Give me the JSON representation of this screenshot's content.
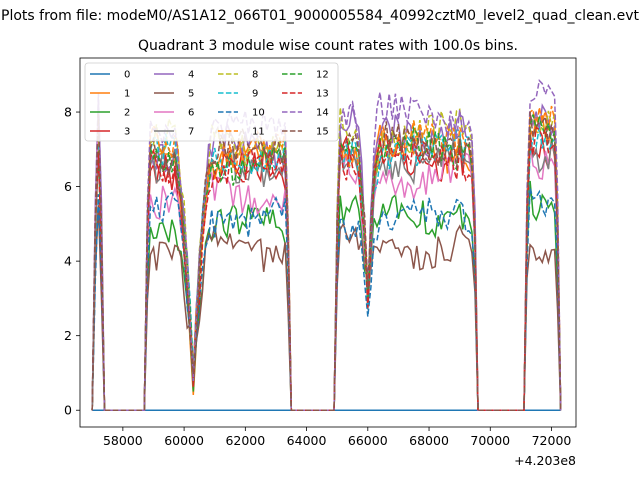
{
  "chart_data": {
    "type": "line",
    "suptitle": "Plots from file: modeM0/AS1A12_066T01_9000005584_40992cztM0_level2_quad_clean.evt",
    "title": "Quadrant 3 module wise count rates with 100.0s bins.",
    "xlabel": "",
    "ylabel": "",
    "x_offset_label": "+4.203e8",
    "xlim": [
      56600,
      72800
    ],
    "ylim": [
      -0.45,
      9.45
    ],
    "xticks": [
      58000,
      60000,
      62000,
      64000,
      66000,
      68000,
      70000,
      72000
    ],
    "xtick_labels": [
      "58000",
      "60000",
      "62000",
      "64000",
      "66000",
      "68000",
      "70000",
      "72000"
    ],
    "yticks": [
      0,
      2,
      4,
      6,
      8
    ],
    "ytick_labels": [
      "0",
      "2",
      "4",
      "6",
      "8"
    ],
    "legend_position": "upper-left",
    "legend_columns": 4,
    "segments": [
      [
        57000,
        57400
      ],
      [
        58700,
        63500
      ],
      [
        64900,
        69600
      ],
      [
        71100,
        72300
      ]
    ],
    "x_start": 57000,
    "x_end": 72300,
    "dip_x": 60300,
    "series": [
      {
        "name": "0",
        "color": "#1f77b4",
        "dash": "solid",
        "rates": [
          0,
          0,
          0,
          0
        ],
        "spike": 0
      },
      {
        "name": "1",
        "color": "#ff7f0e",
        "dash": "solid",
        "rates": [
          7.3,
          6.7,
          7.0,
          7.5
        ],
        "spike": 8.0
      },
      {
        "name": "2",
        "color": "#2ca02c",
        "dash": "solid",
        "rates": [
          5.3,
          4.9,
          5.3,
          5.4
        ],
        "spike": 6.2
      },
      {
        "name": "3",
        "color": "#d62728",
        "dash": "solid",
        "rates": [
          6.9,
          6.5,
          6.8,
          7.0
        ],
        "spike": 7.8
      },
      {
        "name": "4",
        "color": "#9467bd",
        "dash": "solid",
        "rates": [
          7.9,
          7.0,
          7.5,
          7.9
        ],
        "spike": 8.4
      },
      {
        "name": "5",
        "color": "#8c564b",
        "dash": "solid",
        "rates": [
          4.9,
          4.3,
          4.4,
          4.6
        ],
        "spike": 5.6
      },
      {
        "name": "6",
        "color": "#e377c2",
        "dash": "solid",
        "rates": [
          7.1,
          5.7,
          6.3,
          6.8
        ],
        "spike": 7.6
      },
      {
        "name": "7",
        "color": "#7f7f7f",
        "dash": "solid",
        "rates": [
          7.0,
          6.6,
          6.7,
          7.0
        ],
        "spike": 7.7
      },
      {
        "name": "8",
        "color": "#bcbd22",
        "dash": "dashed",
        "rates": [
          7.6,
          7.2,
          7.4,
          8.0
        ],
        "spike": 8.0
      },
      {
        "name": "9",
        "color": "#17becf",
        "dash": "dashed",
        "rates": [
          7.1,
          6.8,
          6.9,
          7.2
        ],
        "spike": 7.6
      },
      {
        "name": "10",
        "color": "#1f77b4",
        "dash": "dashed",
        "rates": [
          5.7,
          5.2,
          5.1,
          5.4
        ],
        "spike": 6.0
      },
      {
        "name": "11",
        "color": "#ff7f0e",
        "dash": "dashed",
        "rates": [
          7.5,
          7.0,
          7.2,
          7.6
        ],
        "spike": 8.0
      },
      {
        "name": "12",
        "color": "#2ca02c",
        "dash": "dashed",
        "rates": [
          7.2,
          6.6,
          7.0,
          7.3
        ],
        "spike": 7.8
      },
      {
        "name": "13",
        "color": "#d62728",
        "dash": "dashed",
        "rates": [
          6.8,
          6.4,
          6.8,
          7.0
        ],
        "spike": 7.6
      },
      {
        "name": "14",
        "color": "#9467bd",
        "dash": "dashed",
        "rates": [
          8.2,
          7.5,
          7.9,
          8.4
        ],
        "spike": 8.6
      },
      {
        "name": "15",
        "color": "#8c564b",
        "dash": "dashed",
        "rates": [
          7.3,
          6.9,
          7.1,
          7.4
        ],
        "spike": 7.9
      }
    ]
  }
}
